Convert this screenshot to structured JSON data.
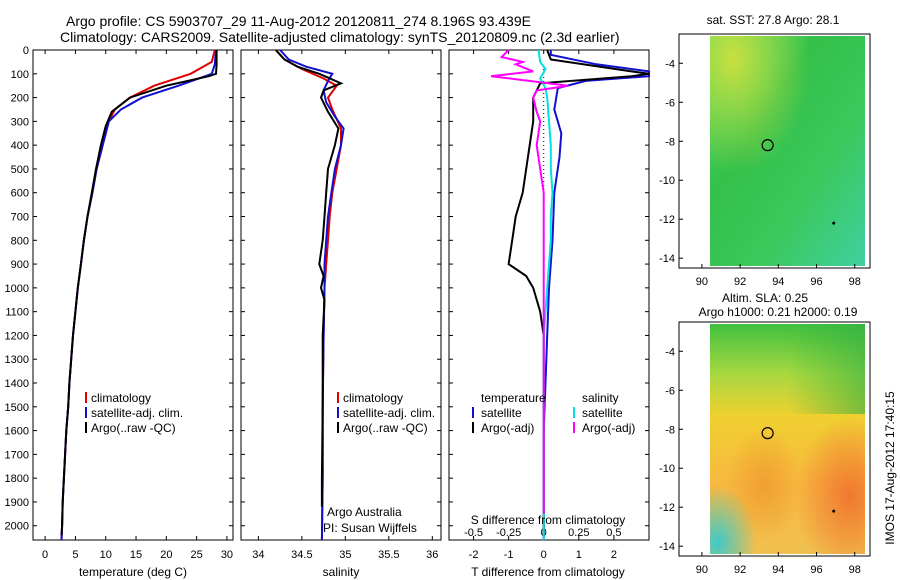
{
  "title": {
    "line1": "Argo profile: CS 5903707_29 11-Aug-2012 20120811_274 8.196S 93.439E",
    "line2": "Climatology: CARS2009. Satellite-adjusted climatology: synTS_20120809.nc (2.3d earlier)"
  },
  "colors": {
    "climatology": "#e00000",
    "satellite": "#1010d0",
    "argo": "#000000",
    "sat_salinity": "#00e0e0",
    "argo_salinity_diff": "#ff00ff"
  },
  "side_text": "IMOS 17-Aug-2012 17:40:15",
  "chart_data": [
    {
      "type": "line",
      "xlabel": "temperature (deg C)",
      "xlim": [
        -2,
        31
      ],
      "xticks": [
        "0",
        "5",
        "10",
        "15",
        "20",
        "25",
        "30"
      ],
      "ylim": [
        2060,
        0
      ],
      "yticks": [
        "0",
        "100",
        "200",
        "300",
        "400",
        "500",
        "600",
        "700",
        "800",
        "900",
        "1000",
        "1100",
        "1200",
        "1300",
        "1400",
        "1500",
        "1600",
        "1700",
        "1800",
        "1900",
        "2000"
      ],
      "legend": [
        "climatology",
        "satellite-adj. clim.",
        "Argo(..raw -QC)"
      ],
      "series": [
        {
          "name": "climatology",
          "color": "#e00000",
          "points": [
            [
              28,
              0
            ],
            [
              27.5,
              50
            ],
            [
              24,
              100
            ],
            [
              18,
              150
            ],
            [
              14,
              200
            ],
            [
              11.5,
              250
            ],
            [
              10.5,
              300
            ],
            [
              9.5,
              400
            ],
            [
              8.5,
              500
            ],
            [
              7.8,
              600
            ],
            [
              7,
              700
            ],
            [
              6.4,
              800
            ],
            [
              5.9,
              900
            ],
            [
              5.4,
              1000
            ],
            [
              5,
              1100
            ],
            [
              4.6,
              1200
            ],
            [
              4.3,
              1300
            ],
            [
              4,
              1400
            ],
            [
              3.8,
              1500
            ],
            [
              3.5,
              1600
            ],
            [
              3.3,
              1700
            ],
            [
              3.1,
              1800
            ],
            [
              2.9,
              1900
            ],
            [
              2.8,
              2000
            ],
            [
              2.7,
              2060
            ]
          ]
        },
        {
          "name": "satellite-adj. clim.",
          "color": "#1010d0",
          "points": [
            [
              28.2,
              0
            ],
            [
              28,
              60
            ],
            [
              27.5,
              100
            ],
            [
              22,
              150
            ],
            [
              16,
              200
            ],
            [
              12.5,
              250
            ],
            [
              10.5,
              300
            ],
            [
              9.5,
              400
            ],
            [
              8.5,
              500
            ],
            [
              7.8,
              600
            ],
            [
              7,
              700
            ],
            [
              6.4,
              800
            ],
            [
              5.9,
              900
            ],
            [
              5.4,
              1000
            ],
            [
              5,
              1100
            ],
            [
              4.6,
              1200
            ],
            [
              4.3,
              1300
            ],
            [
              4,
              1400
            ],
            [
              3.8,
              1500
            ],
            [
              3.5,
              1600
            ],
            [
              3.3,
              1700
            ],
            [
              3.1,
              1800
            ],
            [
              2.9,
              1900
            ],
            [
              2.8,
              2000
            ],
            [
              2.7,
              2060
            ]
          ]
        },
        {
          "name": "Argo(..raw -QC)",
          "color": "#000000",
          "points": [
            [
              28.3,
              0
            ],
            [
              28.3,
              60
            ],
            [
              28.2,
              100
            ],
            [
              27,
              110
            ],
            [
              20,
              150
            ],
            [
              14,
              200
            ],
            [
              11,
              260
            ],
            [
              10,
              320
            ],
            [
              9.2,
              400
            ],
            [
              8.4,
              500
            ],
            [
              7.7,
              600
            ],
            [
              7,
              700
            ],
            [
              6.4,
              800
            ],
            [
              5.9,
              900
            ],
            [
              5.4,
              1000
            ],
            [
              5,
              1100
            ],
            [
              4.6,
              1200
            ],
            [
              4.3,
              1300
            ],
            [
              4,
              1400
            ],
            [
              3.8,
              1500
            ],
            [
              3.5,
              1600
            ],
            [
              3.3,
              1700
            ],
            [
              3.1,
              1800
            ],
            [
              2.9,
              1900
            ],
            [
              2.8,
              2000
            ],
            [
              2.7,
              2040
            ]
          ]
        }
      ]
    },
    {
      "type": "line",
      "xlabel": "salinity",
      "xlim": [
        33.8,
        36.1
      ],
      "xticks": [
        "34",
        "34.5",
        "35",
        "35.5",
        "36"
      ],
      "ylim": [
        2060,
        0
      ],
      "legend": [
        "climatology",
        "satellite-adj. clim.",
        "Argo(..raw -QC)"
      ],
      "annotation": [
        "Argo Australia",
        "PI: Susan Wijffels"
      ],
      "series": [
        {
          "name": "climatology",
          "color": "#e00000",
          "points": [
            [
              34.2,
              0
            ],
            [
              34.3,
              40
            ],
            [
              34.5,
              80
            ],
            [
              34.75,
              120
            ],
            [
              34.9,
              150
            ],
            [
              34.8,
              200
            ],
            [
              34.85,
              250
            ],
            [
              34.95,
              330
            ],
            [
              34.95,
              400
            ],
            [
              34.9,
              500
            ],
            [
              34.85,
              600
            ],
            [
              34.82,
              700
            ],
            [
              34.8,
              800
            ],
            [
              34.78,
              900
            ],
            [
              34.76,
              1000
            ],
            [
              34.75,
              1200
            ],
            [
              34.74,
              1500
            ],
            [
              34.74,
              1800
            ],
            [
              34.73,
              2060
            ]
          ]
        },
        {
          "name": "satellite-adj. clim.",
          "color": "#1010d0",
          "points": [
            [
              34.25,
              0
            ],
            [
              34.35,
              40
            ],
            [
              34.55,
              70
            ],
            [
              34.85,
              100
            ],
            [
              34.8,
              130
            ],
            [
              34.75,
              170
            ],
            [
              34.78,
              220
            ],
            [
              34.88,
              280
            ],
            [
              34.98,
              330
            ],
            [
              34.95,
              400
            ],
            [
              34.88,
              500
            ],
            [
              34.84,
              600
            ],
            [
              34.8,
              700
            ],
            [
              34.78,
              800
            ],
            [
              34.76,
              900
            ],
            [
              34.76,
              1000
            ],
            [
              34.75,
              1200
            ],
            [
              34.74,
              1500
            ],
            [
              34.74,
              1800
            ],
            [
              34.73,
              2060
            ]
          ]
        },
        {
          "name": "Argo(..raw -QC)",
          "color": "#000000",
          "points": [
            [
              34.2,
              0
            ],
            [
              34.3,
              40
            ],
            [
              34.45,
              70
            ],
            [
              34.7,
              100
            ],
            [
              34.95,
              140
            ],
            [
              34.75,
              170
            ],
            [
              34.72,
              200
            ],
            [
              34.8,
              260
            ],
            [
              34.92,
              330
            ],
            [
              34.88,
              400
            ],
            [
              34.8,
              500
            ],
            [
              34.78,
              600
            ],
            [
              34.76,
              700
            ],
            [
              34.74,
              800
            ],
            [
              34.7,
              900
            ],
            [
              34.75,
              950
            ],
            [
              34.72,
              1000
            ],
            [
              34.76,
              1050
            ],
            [
              34.74,
              1200
            ],
            [
              34.74,
              1500
            ],
            [
              34.73,
              1800
            ],
            [
              34.73,
              1920
            ]
          ]
        }
      ]
    },
    {
      "type": "line",
      "xlabel": "T difference from climatology",
      "xlabel2": "S difference from climatology",
      "xlim": [
        -2.7,
        3
      ],
      "xticks": [
        "-2",
        "-1",
        "0",
        "1",
        "2"
      ],
      "xticks_top": [
        "-0.5",
        "-0.25",
        "0",
        "0.25",
        "0.5"
      ],
      "ylim": [
        2060,
        0
      ],
      "legend_left": [
        "temperature",
        "satellite",
        "Argo(-adj)"
      ],
      "legend_right": [
        "salinity",
        "satellite",
        "Argo(-adj)"
      ],
      "series": [
        {
          "name": "satellite",
          "color": "#1010d0",
          "points": [
            [
              0.2,
              0
            ],
            [
              0.2,
              20
            ],
            [
              1.5,
              60
            ],
            [
              3,
              90
            ],
            [
              3,
              110
            ],
            [
              1.2,
              130
            ],
            [
              0.4,
              160
            ],
            [
              0.3,
              250
            ],
            [
              0.5,
              350
            ],
            [
              0.45,
              450
            ],
            [
              0.3,
              600
            ],
            [
              0.25,
              800
            ],
            [
              0.15,
              1000
            ],
            [
              0.1,
              1200
            ],
            [
              0.05,
              1400
            ],
            [
              0,
              1600
            ],
            [
              0,
              1800
            ],
            [
              0,
              2060
            ]
          ]
        },
        {
          "name": "Argo(-adj)",
          "color": "#000000",
          "points": [
            [
              0.1,
              0
            ],
            [
              0.2,
              40
            ],
            [
              2.5,
              90
            ],
            [
              3,
              100
            ],
            [
              2.5,
              110
            ],
            [
              -0.1,
              140
            ],
            [
              -0.3,
              200
            ],
            [
              -0.3,
              300
            ],
            [
              -0.4,
              400
            ],
            [
              -0.5,
              500
            ],
            [
              -0.6,
              600
            ],
            [
              -0.8,
              700
            ],
            [
              -0.9,
              800
            ],
            [
              -1,
              900
            ],
            [
              -0.5,
              950
            ],
            [
              -0.3,
              1000
            ],
            [
              -0.1,
              1100
            ],
            [
              0,
              1200
            ],
            [
              0,
              1400
            ],
            [
              0,
              1600
            ],
            [
              0,
              1800
            ],
            [
              0,
              2040
            ]
          ]
        },
        {
          "name": "satellite",
          "color": "#00e0e0",
          "points": [
            [
              -0.15,
              0
            ],
            [
              -0.1,
              50
            ],
            [
              0.05,
              80
            ],
            [
              -0.1,
              120
            ],
            [
              0.05,
              160
            ],
            [
              0.1,
              200
            ],
            [
              0.15,
              300
            ],
            [
              0.2,
              400
            ],
            [
              0.2,
              500
            ],
            [
              0.25,
              600
            ],
            [
              0.2,
              700
            ],
            [
              0.2,
              800
            ],
            [
              0.15,
              900
            ],
            [
              0.1,
              1000
            ],
            [
              0.05,
              1100
            ],
            [
              0,
              1200
            ],
            [
              0,
              1400
            ],
            [
              0,
              1600
            ],
            [
              0,
              1800
            ],
            [
              0,
              2060
            ]
          ]
        },
        {
          "name": "Argo(-adj)",
          "color": "#ff00ff",
          "points": [
            [
              -1,
              0
            ],
            [
              -1.2,
              30
            ],
            [
              -0.6,
              50
            ],
            [
              -0.8,
              60
            ],
            [
              -0.3,
              90
            ],
            [
              -1.5,
              110
            ],
            [
              0.7,
              150
            ],
            [
              -0.2,
              170
            ],
            [
              -0.3,
              200
            ],
            [
              -0.2,
              260
            ],
            [
              -0.1,
              300
            ],
            [
              -0.2,
              400
            ],
            [
              -0.1,
              500
            ],
            [
              0,
              600
            ],
            [
              0,
              800
            ],
            [
              0,
              1000
            ],
            [
              0,
              1200
            ],
            [
              0,
              1500
            ],
            [
              0,
              1800
            ],
            [
              0,
              1950
            ]
          ]
        }
      ]
    },
    {
      "type": "heatmap",
      "title": "sat. SST: 27.8 Argo: 28.1",
      "xticks": [
        "90",
        "92",
        "94",
        "96",
        "98"
      ],
      "yticks": [
        "-4",
        "-6",
        "-8",
        "-10",
        "-12",
        "-14"
      ],
      "xlim": [
        88.8,
        98.8
      ],
      "ylim": [
        -14.4,
        -2.6
      ],
      "marker": [
        93.44,
        -8.2
      ],
      "dot": [
        96.9,
        -12.2
      ]
    },
    {
      "type": "heatmap",
      "title_line1": "Altim. SLA: 0.25",
      "title_line2": "Argo h1000: 0.21 h2000: 0.19",
      "xticks": [
        "90",
        "92",
        "94",
        "96",
        "98"
      ],
      "yticks": [
        "-4",
        "-6",
        "-8",
        "-10",
        "-12",
        "-14"
      ],
      "xlim": [
        88.8,
        98.8
      ],
      "ylim": [
        -14.4,
        -2.6
      ],
      "marker": [
        93.44,
        -8.2
      ],
      "dot": [
        96.9,
        -12.2
      ]
    }
  ]
}
